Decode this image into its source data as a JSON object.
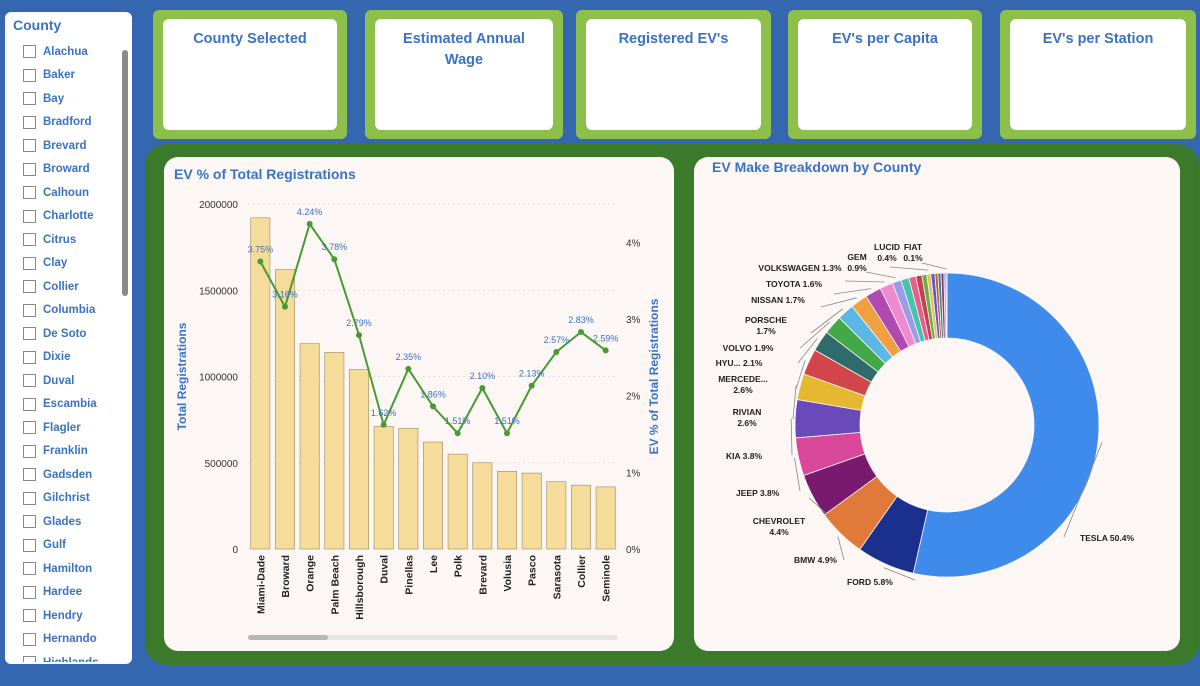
{
  "slicer": {
    "title": "County",
    "items": [
      "Alachua",
      "Baker",
      "Bay",
      "Bradford",
      "Brevard",
      "Broward",
      "Calhoun",
      "Charlotte",
      "Citrus",
      "Clay",
      "Collier",
      "Columbia",
      "De Soto",
      "Dixie",
      "Duval",
      "Escambia",
      "Flagler",
      "Franklin",
      "Gadsden",
      "Gilchrist",
      "Glades",
      "Gulf",
      "Hamilton",
      "Hardee",
      "Hendry",
      "Hernando",
      "Highlands"
    ]
  },
  "kpis": [
    {
      "title": "County Selected"
    },
    {
      "title": "Estimated Annual Wage"
    },
    {
      "title": "Registered EV's"
    },
    {
      "title": "EV's per Capita"
    },
    {
      "title": "EV's per Station"
    }
  ],
  "colors": {
    "background": "#3566b0",
    "kpi_frame": "#8cc04a",
    "chart_frame": "#3a7a2a",
    "bar": "#f5dc9a",
    "line": "#4a9a34",
    "title": "#3a72c4"
  },
  "chart_data": [
    {
      "type": "bar",
      "title": "EV % of Total Registrations",
      "ylabel": "Total Registrations",
      "y2label": "EV % of Total Registrations",
      "ylim": [
        0,
        2000000
      ],
      "y2lim": [
        0,
        4.5
      ],
      "yticks": [
        "2000000",
        "1500000",
        "1000000",
        "500000",
        "0"
      ],
      "y2ticks": [
        "4%",
        "3%",
        "2%",
        "1%",
        "0%"
      ],
      "grid": true,
      "categories": [
        "Miami-Dade",
        "Broward",
        "Orange",
        "Palm Beach",
        "Hillsborough",
        "Duval",
        "Pinellas",
        "Lee",
        "Polk",
        "Brevard",
        "Volusia",
        "Pasco",
        "Sarasota",
        "Collier",
        "Seminole"
      ],
      "series": [
        {
          "name": "Total Registrations",
          "type": "bar",
          "values": [
            1920000,
            1620000,
            1190000,
            1140000,
            1040000,
            710000,
            700000,
            620000,
            550000,
            500000,
            450000,
            440000,
            390000,
            370000,
            360000
          ]
        },
        {
          "name": "EV % of Total Registrations",
          "type": "line",
          "values": [
            3.75,
            3.16,
            4.24,
            3.78,
            2.79,
            1.62,
            2.35,
            1.86,
            1.51,
            2.1,
            1.51,
            2.13,
            2.57,
            2.83,
            2.59
          ],
          "labels": [
            "3.75%",
            "3.16%",
            "4.24%",
            "3.78%",
            "2.79%",
            "1.62%",
            "2.35%",
            "1.86%",
            "1.51%",
            "2.10%",
            "1.51%",
            "2.13%",
            "2.57%",
            "2.83%",
            "2.59%"
          ]
        }
      ]
    },
    {
      "type": "pie",
      "title": "EV Make Breakdown by County",
      "slices": [
        {
          "label": "TESLA 50.4%",
          "value": 50.4,
          "color": "#3f8bec"
        },
        {
          "label": "FORD 5.8%",
          "value": 5.8,
          "color": "#1b2f8c"
        },
        {
          "label": "BMW 4.9%",
          "value": 4.9,
          "color": "#e0793a"
        },
        {
          "label": "CHEVROLET 4.4%",
          "value": 4.4,
          "color": "#7a1a6e"
        },
        {
          "label": "JEEP 3.8%",
          "value": 3.8,
          "color": "#d9479a"
        },
        {
          "label": "KIA 3.8%",
          "value": 3.8,
          "color": "#6a4ab8"
        },
        {
          "label": "RIVIAN 2.6%",
          "value": 2.6,
          "color": "#e6b830"
        },
        {
          "label": "MERCEDE... 2.6%",
          "value": 2.6,
          "color": "#d2454a"
        },
        {
          "label": "HYU... 2.1%",
          "value": 2.1,
          "color": "#2e6b6b"
        },
        {
          "label": "VOLVO 1.9%",
          "value": 1.9,
          "color": "#43a848"
        },
        {
          "label": "PORSCHE 1.7%",
          "value": 1.7,
          "color": "#5bb8e6"
        },
        {
          "label": "NISSAN 1.7%",
          "value": 1.7,
          "color": "#f0a040"
        },
        {
          "label": "TOYOTA 1.6%",
          "value": 1.6,
          "color": "#b04ab0"
        },
        {
          "label": "VOLKSWAGEN 1.3%",
          "value": 1.3,
          "color": "#f08ad0"
        },
        {
          "label": "GEM 0.9%",
          "value": 0.9,
          "color": "#9b9be8"
        },
        {
          "label": "",
          "value": 0.8,
          "color": "#44c4b0"
        },
        {
          "label": "",
          "value": 0.7,
          "color": "#e85f8a"
        },
        {
          "label": "",
          "value": 0.6,
          "color": "#c44050"
        },
        {
          "label": "",
          "value": 0.5,
          "color": "#6ab04a"
        },
        {
          "label": "LUCID 0.4%",
          "value": 0.4,
          "color": "#e8c05a"
        },
        {
          "label": "",
          "value": 0.4,
          "color": "#5a5ad0"
        },
        {
          "label": "",
          "value": 0.3,
          "color": "#d05a30"
        },
        {
          "label": "",
          "value": 0.3,
          "color": "#2a8a8a"
        },
        {
          "label": "",
          "value": 0.3,
          "color": "#a03080"
        },
        {
          "label": "",
          "value": 0.2,
          "color": "#60a0e0"
        },
        {
          "label": "FIAT 0.1%",
          "value": 0.1,
          "color": "#884488"
        }
      ]
    }
  ]
}
